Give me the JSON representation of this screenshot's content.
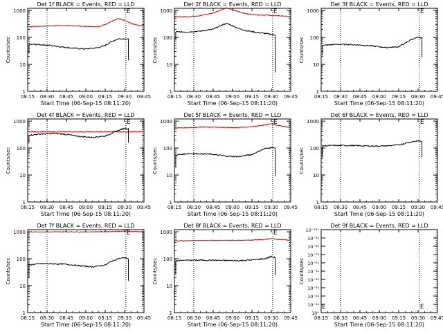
{
  "colors": {
    "events": "#000000",
    "lld": "#cc0000",
    "axes": "#000000"
  },
  "chart_data": [
    {
      "type": "line",
      "title": "Det 1f BLACK = Events, RED = LLD",
      "xlabel": "Start Time (06-Sep-15 08:11:20)",
      "ylabel": "Counts/sec",
      "x_ticks": [
        "08:15",
        "08:30",
        "08:45",
        "09:00",
        "09:15",
        "09:30",
        "09:45"
      ],
      "y_ticks": [
        "1",
        "10",
        "100",
        "1000"
      ],
      "ylim": [
        1,
        1200
      ],
      "yscale": "log",
      "vlines": [
        "08:30",
        "09:31",
        "09:44"
      ],
      "marker": "E",
      "series": [
        {
          "role": "lld",
          "x": [
            "08:15",
            "08:20",
            "08:30",
            "08:40",
            "08:50",
            "09:00",
            "09:10",
            "09:15",
            "09:20",
            "09:25",
            "09:30",
            "09:35",
            "09:40",
            "09:45"
          ],
          "values": [
            250,
            255,
            265,
            275,
            270,
            255,
            250,
            300,
            400,
            500,
            430,
            330,
            280,
            260
          ]
        },
        {
          "role": "events",
          "start_level": 25,
          "end_drop": 14,
          "x": [
            "08:16",
            "08:20",
            "08:30",
            "08:40",
            "08:50",
            "09:00",
            "09:10",
            "09:15",
            "09:20",
            "09:25",
            "09:30",
            "09:33"
          ],
          "values": [
            55,
            55,
            52,
            45,
            40,
            37,
            42,
            50,
            70,
            88,
            90,
            85
          ]
        }
      ]
    },
    {
      "type": "line",
      "title": "Det 2f BLACK = Events, RED = LLD",
      "xlabel": "Start Time (06-Sep-15 08:11:20)",
      "ylabel": "Counts/sec",
      "x_ticks": [
        "08:15",
        "08:30",
        "08:45",
        "09:00",
        "09:15",
        "09:30",
        "09:45"
      ],
      "y_ticks": [
        "1",
        "10",
        "100",
        "1000"
      ],
      "ylim": [
        1,
        1200
      ],
      "yscale": "log",
      "vlines": [
        "08:30",
        "09:31",
        "09:44"
      ],
      "marker": "E",
      "series": [
        {
          "role": "lld",
          "x": [
            "08:15",
            "08:25",
            "08:35",
            "08:45",
            "08:50",
            "08:55",
            "09:00",
            "09:05",
            "09:10",
            "09:20",
            "09:30",
            "09:40",
            "09:45"
          ],
          "values": [
            580,
            590,
            640,
            800,
            1000,
            1250,
            1050,
            900,
            760,
            680,
            660,
            620,
            580
          ]
        },
        {
          "role": "events",
          "start_level": 85,
          "end_drop": 5,
          "x": [
            "08:16",
            "08:25",
            "08:35",
            "08:45",
            "08:50",
            "08:55",
            "09:00",
            "09:05",
            "09:10",
            "09:20",
            "09:30",
            "09:33"
          ],
          "values": [
            160,
            160,
            170,
            200,
            260,
            330,
            270,
            210,
            180,
            150,
            130,
            120
          ]
        }
      ]
    },
    {
      "type": "line",
      "title": "Det 3f BLACK = Events, RED = LLD",
      "xlabel": "Start Time (06-Sep-15 08:11:20)",
      "ylabel": "Counts/sec",
      "x_ticks": [
        "08:15",
        "08:30",
        "08:45",
        "09:00",
        "09:15",
        "09:30",
        "09:45"
      ],
      "y_ticks": [
        "1",
        "10",
        "100",
        "1000"
      ],
      "ylim": [
        1,
        1200
      ],
      "yscale": "log",
      "vlines": [
        "08:30",
        "09:31",
        "09:44"
      ],
      "marker": "E",
      "series": [
        {
          "role": "events",
          "start_level": 22,
          "end_drop": 18,
          "x": [
            "08:16",
            "08:25",
            "08:35",
            "08:45",
            "08:55",
            "09:05",
            "09:15",
            "09:20",
            "09:25",
            "09:30",
            "09:33"
          ],
          "values": [
            50,
            55,
            55,
            52,
            48,
            42,
            45,
            60,
            85,
            100,
            95
          ]
        }
      ]
    },
    {
      "type": "line",
      "title": "Det 4f BLACK = Events, RED = LLD",
      "xlabel": "Start Time (06-Sep-15 08:11:20)",
      "ylabel": "Counts/sec",
      "x_ticks": [
        "08:15",
        "08:30",
        "08:45",
        "09:00",
        "09:15",
        "09:30",
        "09:45"
      ],
      "y_ticks": [
        "1",
        "10",
        "100",
        "1000"
      ],
      "ylim": [
        1,
        1200
      ],
      "yscale": "log",
      "vlines": [
        "08:30",
        "09:31",
        "09:44"
      ],
      "marker": "E",
      "series": [
        {
          "role": "lld",
          "x": [
            "08:15",
            "09:45"
          ],
          "values": [
            400,
            400
          ]
        },
        {
          "role": "events",
          "start_level": 150,
          "end_drop": 160,
          "x": [
            "08:16",
            "08:25",
            "08:35",
            "08:45",
            "08:55",
            "09:05",
            "09:15",
            "09:20",
            "09:25",
            "09:30",
            "09:33"
          ],
          "values": [
            300,
            330,
            350,
            320,
            270,
            250,
            280,
            350,
            450,
            540,
            510
          ]
        }
      ]
    },
    {
      "type": "line",
      "title": "Det 5f BLACK = Events, RED = LLD",
      "xlabel": "Start Time (06-Sep-15 08:11:20)",
      "ylabel": "Counts/sec",
      "x_ticks": [
        "08:15",
        "08:30",
        "08:45",
        "09:00",
        "09:15",
        "09:30",
        "09:45"
      ],
      "y_ticks": [
        "1",
        "10",
        "100",
        "1000"
      ],
      "ylim": [
        1,
        1200
      ],
      "yscale": "log",
      "vlines": [
        "08:30",
        "09:31",
        "09:44"
      ],
      "marker": "E",
      "series": [
        {
          "role": "lld",
          "x": [
            "08:15",
            "08:25",
            "08:35",
            "08:45",
            "08:55",
            "09:05",
            "09:15",
            "09:25",
            "09:30",
            "09:35",
            "09:45"
          ],
          "values": [
            560,
            570,
            600,
            600,
            580,
            580,
            620,
            720,
            800,
            700,
            570
          ]
        },
        {
          "role": "events",
          "start_level": 20,
          "end_drop": 9,
          "x": [
            "08:16",
            "08:25",
            "08:35",
            "08:45",
            "08:55",
            "09:05",
            "09:15",
            "09:20",
            "09:25",
            "09:30",
            "09:33"
          ],
          "values": [
            55,
            62,
            62,
            58,
            50,
            48,
            58,
            75,
            95,
            105,
            100
          ]
        }
      ]
    },
    {
      "type": "line",
      "title": "Det 6f BLACK = Events, RED = LLD",
      "xlabel": "Start Time (06-Sep-15 08:11:20)",
      "ylabel": "Counts/sec",
      "x_ticks": [
        "08:15",
        "08:30",
        "08:45",
        "09:00",
        "09:15",
        "09:30",
        "09:45"
      ],
      "y_ticks": [
        "1",
        "10",
        "100",
        "1000"
      ],
      "ylim": [
        1,
        1200
      ],
      "yscale": "log",
      "vlines": [
        "08:30",
        "09:31",
        "09:44"
      ],
      "marker": "E",
      "series": [
        {
          "role": "events",
          "start_level": 45,
          "end_drop": 45,
          "x": [
            "08:16",
            "08:25",
            "08:35",
            "08:45",
            "08:55",
            "09:05",
            "09:15",
            "09:20",
            "09:25",
            "09:30",
            "09:33"
          ],
          "values": [
            120,
            125,
            125,
            122,
            118,
            120,
            130,
            150,
            170,
            185,
            175
          ]
        }
      ]
    },
    {
      "type": "line",
      "title": "Det 7f BLACK = Events, RED = LLD",
      "xlabel": "Start Time (06-Sep-15 08:11:20)",
      "ylabel": "Counts/sec",
      "x_ticks": [
        "08:15",
        "08:30",
        "08:45",
        "09:00",
        "09:15",
        "09:30",
        "09:45"
      ],
      "y_ticks": [
        "1",
        "10",
        "100",
        "1000"
      ],
      "ylim": [
        1,
        1200
      ],
      "yscale": "log",
      "vlines": [
        "08:30",
        "09:31",
        "09:44"
      ],
      "marker": "E",
      "series": [
        {
          "role": "lld",
          "x": [
            "08:15",
            "08:30",
            "08:45",
            "09:00",
            "09:15",
            "09:30",
            "09:45"
          ],
          "values": [
            1000,
            980,
            1000,
            990,
            1010,
            1050,
            1000
          ]
        },
        {
          "role": "events",
          "start_level": 20,
          "end_drop": 15,
          "x": [
            "08:16",
            "08:25",
            "08:35",
            "08:45",
            "08:55",
            "09:05",
            "09:15",
            "09:20",
            "09:25",
            "09:30",
            "09:33"
          ],
          "values": [
            60,
            65,
            65,
            62,
            55,
            50,
            58,
            80,
            100,
            110,
            100
          ]
        }
      ]
    },
    {
      "type": "line",
      "title": "Det 8f BLACK = Events, RED = LLD",
      "xlabel": "Start Time (06-Sep-15 08:11:20)",
      "ylabel": "Counts/sec",
      "x_ticks": [
        "08:15",
        "08:30",
        "08:45",
        "09:00",
        "09:15",
        "09:30",
        "09:45"
      ],
      "y_ticks": [
        "1",
        "10",
        "100",
        "1000"
      ],
      "ylim": [
        1,
        1200
      ],
      "yscale": "log",
      "vlines": [
        "08:30",
        "09:31",
        "09:44"
      ],
      "marker": "E",
      "series": [
        {
          "role": "lld",
          "x": [
            "08:15",
            "08:30",
            "08:45",
            "09:00",
            "09:15",
            "09:25",
            "09:30",
            "09:35",
            "09:45"
          ],
          "values": [
            460,
            470,
            480,
            480,
            490,
            520,
            560,
            530,
            480
          ]
        },
        {
          "role": "events",
          "start_level": 25,
          "end_drop": 25,
          "x": [
            "08:16",
            "08:25",
            "08:35",
            "08:45",
            "08:55",
            "09:05",
            "09:15",
            "09:25",
            "09:30",
            "09:33"
          ],
          "values": [
            85,
            88,
            88,
            88,
            86,
            85,
            90,
            100,
            120,
            110
          ]
        }
      ]
    },
    {
      "type": "line",
      "title": "Det 9f BLACK = Events, RED = LLD",
      "xlabel": "Start Time (06-Sep-15 08:11:20)",
      "ylabel": "Counts/sec",
      "x_ticks": [
        "08:15",
        "08:30",
        "08:45",
        "09:00",
        "09:15",
        "09:30",
        "09:45"
      ],
      "y_ticks": [
        "10⁰",
        "10⁻¹¹",
        "10⁻²¹",
        "10⁻³¹",
        "10⁻⁴¹",
        "10⁻⁵¹",
        "10⁻⁶¹",
        "10⁻⁷¹",
        "10⁻⁸¹",
        "10⁻⁹¹",
        "10⁻¹⁰¹"
      ],
      "yscale": "log",
      "vlines": [
        "08:30",
        "09:31",
        "09:44"
      ],
      "marker": "E",
      "marker_position": "bottom",
      "series": []
    }
  ]
}
